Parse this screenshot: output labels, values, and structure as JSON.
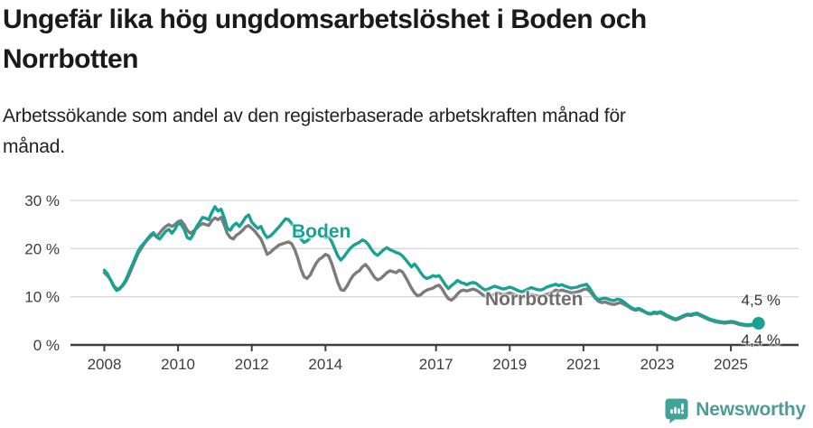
{
  "header": {
    "title": "Ungefär lika hög ungdomsarbetslöshet i Boden och\nNorrbotten",
    "subtitle": "Arbetssökande som andel av den registerbaserade arbetskraften månad för\nmånad."
  },
  "colors": {
    "boden": "#18A294",
    "norrbotten": "#7C7C7C",
    "norrbotten_label": "#6E6E6E",
    "grid": "#D8D8D8",
    "axis": "#3F3F3F",
    "tick_text": "#3D3D3D",
    "brand": "#4B9E96",
    "badge": "#3FA39A"
  },
  "footer": {
    "brand_name": "Newsworthy",
    "brand_icon": "bar-chart-badge-icon"
  },
  "chart_data": {
    "type": "line",
    "title": "Ungefär lika hög ungdomsarbetslöshet i Boden och Norrbotten",
    "xlabel": "",
    "ylabel": "Arbetssökande som andel av den registerbaserade arbetskraften, %",
    "frequency": "monthly",
    "start_month": "2008-01",
    "end_month": "2025-10",
    "ylim": [
      0,
      33
    ],
    "grid": "horizontal",
    "y_ticks": [
      {
        "value": 0,
        "label": "0 %"
      },
      {
        "value": 10,
        "label": "10 %"
      },
      {
        "value": 20,
        "label": "20 %"
      },
      {
        "value": 30,
        "label": "30 %"
      }
    ],
    "x_ticks": [
      {
        "value": 2008,
        "label": "2008"
      },
      {
        "value": 2010,
        "label": "2010"
      },
      {
        "value": 2012,
        "label": "2012"
      },
      {
        "value": 2014,
        "label": "2014"
      },
      {
        "value": 2017,
        "label": "2017"
      },
      {
        "value": 2019,
        "label": "2019"
      },
      {
        "value": 2021,
        "label": "2021"
      },
      {
        "value": 2023,
        "label": "2023"
      },
      {
        "value": 2025,
        "label": "2025"
      }
    ],
    "series": [
      {
        "name": "Boden",
        "end_label": "4,5 %",
        "end_value": 4.5,
        "marker_on_last_point": true,
        "values": [
          15.5,
          14.8,
          13.5,
          12.2,
          11.3,
          11.6,
          12.5,
          13.5,
          15.0,
          16.5,
          18.0,
          19.5,
          20.5,
          21.2,
          22.0,
          22.8,
          23.3,
          22.4,
          22.0,
          22.8,
          23.6,
          24.0,
          23.2,
          24.0,
          25.3,
          25.0,
          24.0,
          22.3,
          22.0,
          23.0,
          24.5,
          25.5,
          26.5,
          26.3,
          26.0,
          27.5,
          28.7,
          27.8,
          28.2,
          26.5,
          24.3,
          23.8,
          24.8,
          25.3,
          24.6,
          25.5,
          26.5,
          27.0,
          25.5,
          24.8,
          24.2,
          24.6,
          23.2,
          22.3,
          22.6,
          23.2,
          23.9,
          24.6,
          25.4,
          26.2,
          26.0,
          25.2,
          24.2,
          23.0,
          22.0,
          21.3,
          21.6,
          22.2,
          22.8,
          23.3,
          23.0,
          22.6,
          22.3,
          22.5,
          21.5,
          20.0,
          18.5,
          17.6,
          18.3,
          19.2,
          20.0,
          20.6,
          21.0,
          21.3,
          21.8,
          21.5,
          20.8,
          19.8,
          19.0,
          18.6,
          19.2,
          19.8,
          20.2,
          19.8,
          19.5,
          19.2,
          19.0,
          18.5,
          17.8,
          17.0,
          16.2,
          16.8,
          16.0,
          15.0,
          14.2,
          13.8,
          14.0,
          14.4,
          14.2,
          14.4,
          13.5,
          12.5,
          11.7,
          12.3,
          12.8,
          13.4,
          13.0,
          12.8,
          12.5,
          12.8,
          13.0,
          12.8,
          12.3,
          11.8,
          11.4,
          11.6,
          11.9,
          12.2,
          12.0,
          11.8,
          11.6,
          11.8,
          12.0,
          11.8,
          11.5,
          11.2,
          11.0,
          11.3,
          11.6,
          11.9,
          11.7,
          11.5,
          11.4,
          11.6,
          12.0,
          12.2,
          12.4,
          12.6,
          12.3,
          12.5,
          12.2,
          12.0,
          11.8,
          11.9,
          12.0,
          12.3,
          12.4,
          12.6,
          11.8,
          10.8,
          9.8,
          9.4,
          9.6,
          9.7,
          9.5,
          9.3,
          9.2,
          9.5,
          9.4,
          9.0,
          8.5,
          8.0,
          7.6,
          7.4,
          7.6,
          7.3,
          6.9,
          6.6,
          6.5,
          6.8,
          6.7,
          6.9,
          6.6,
          6.2,
          5.9,
          5.6,
          5.4,
          5.6,
          5.9,
          6.2,
          6.4,
          6.3,
          6.5,
          6.6,
          6.3,
          6.0,
          5.7,
          5.4,
          5.2,
          5.0,
          4.9,
          4.8,
          4.7,
          4.8,
          4.9,
          4.8,
          4.6,
          4.4,
          4.3,
          4.2,
          4.2,
          4.3,
          4.4,
          4.5
        ]
      },
      {
        "name": "Norrbotten",
        "end_label": "4,4 %",
        "end_value": 4.4,
        "marker_on_last_point": false,
        "values": [
          15.0,
          14.4,
          13.6,
          12.4,
          11.6,
          11.8,
          12.3,
          13.2,
          14.5,
          16.0,
          17.5,
          19.0,
          20.0,
          21.0,
          21.8,
          22.5,
          23.0,
          22.5,
          23.2,
          24.0,
          24.6,
          25.0,
          24.6,
          25.0,
          25.6,
          25.8,
          25.0,
          23.8,
          23.2,
          23.6,
          24.2,
          24.8,
          25.2,
          25.0,
          24.8,
          25.8,
          26.4,
          26.0,
          26.5,
          25.0,
          23.2,
          22.3,
          22.0,
          22.8,
          23.2,
          23.8,
          24.5,
          24.8,
          24.2,
          23.6,
          22.8,
          22.0,
          20.5,
          18.8,
          19.2,
          19.8,
          20.3,
          20.8,
          21.0,
          21.2,
          21.4,
          21.0,
          19.8,
          18.0,
          15.8,
          14.2,
          13.8,
          14.5,
          15.8,
          17.0,
          17.8,
          18.2,
          18.8,
          18.5,
          17.0,
          15.0,
          13.0,
          11.5,
          11.3,
          12.2,
          13.4,
          14.4,
          15.0,
          15.4,
          16.2,
          16.7,
          16.0,
          15.0,
          14.0,
          13.5,
          13.8,
          14.4,
          15.0,
          15.4,
          15.2,
          15.0,
          15.5,
          15.2,
          14.2,
          13.0,
          11.8,
          10.8,
          10.2,
          10.4,
          11.0,
          11.4,
          11.6,
          11.8,
          12.2,
          12.4,
          11.6,
          10.5,
          9.6,
          9.3,
          9.8,
          10.6,
          11.2,
          11.4,
          11.2,
          11.4,
          11.6,
          11.4,
          11.0,
          10.5,
          10.1,
          10.0,
          10.2,
          10.5,
          10.8,
          10.6,
          10.4,
          10.6,
          10.8,
          10.6,
          10.3,
          10.0,
          9.8,
          10.0,
          10.2,
          10.5,
          10.3,
          10.2,
          10.1,
          10.3,
          10.5,
          10.7,
          11.0,
          11.4,
          11.2,
          11.4,
          11.2,
          11.0,
          10.8,
          10.9,
          11.0,
          11.2,
          11.5,
          11.6,
          11.2,
          10.4,
          9.6,
          9.0,
          8.8,
          8.9,
          8.7,
          8.5,
          8.4,
          8.6,
          8.8,
          8.5,
          8.2,
          7.8,
          7.4,
          7.2,
          7.4,
          7.1,
          6.8,
          6.5,
          6.4,
          6.6,
          6.5,
          6.7,
          6.4,
          6.0,
          5.7,
          5.4,
          5.2,
          5.4,
          5.7,
          6.0,
          6.2,
          6.1,
          6.3,
          6.4,
          6.1,
          5.8,
          5.5,
          5.2,
          5.0,
          4.8,
          4.7,
          4.6,
          4.5,
          4.6,
          4.7,
          4.6,
          4.4,
          4.2,
          4.1,
          4.0,
          4.0,
          4.1,
          4.3,
          4.4
        ]
      }
    ]
  }
}
